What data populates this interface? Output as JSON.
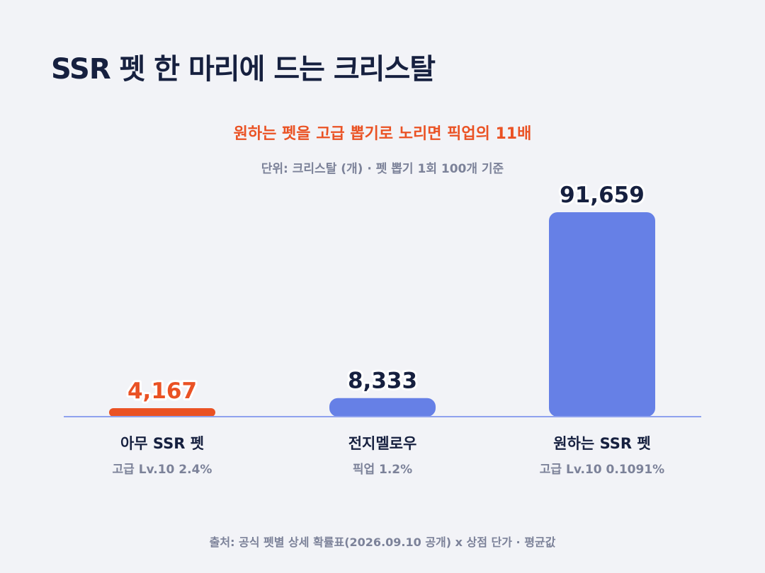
{
  "title": "SSR 펫 한 마리에 드는 크리스탈",
  "subtitle": "원하는 펫을 고급 뽑기로 노리면 픽업의 11배",
  "unit_note": "단위: 크리스탈 (개) · 펫 뽑기 1회 100개 기준",
  "source": "출처: 공식 펫별 상세 확률표(2026.09.10 공개) x 상점 단가 · 평균값",
  "colors": {
    "highlight": "#ea5224",
    "bar": "#6680e6",
    "baseline": "#8fa2ee",
    "title": "#16203f",
    "muted": "#7c8299",
    "background": "#f2f3f7"
  },
  "chart_data": {
    "type": "bar",
    "categories": [
      "아무 SSR 펫",
      "전지멜로우",
      "원하는 SSR 펫"
    ],
    "category_subtitles": [
      "고급 Lv.10 2.4%",
      "픽업 1.2%",
      "고급 Lv.10 0.1091%"
    ],
    "values": [
      4167,
      8333,
      91659
    ],
    "value_labels": [
      "4,167",
      "8,333",
      "91,659"
    ],
    "highlight_index": 0,
    "ylim": [
      0,
      91659
    ],
    "grid": false,
    "legend": "none",
    "xlabel": "",
    "ylabel": ""
  }
}
